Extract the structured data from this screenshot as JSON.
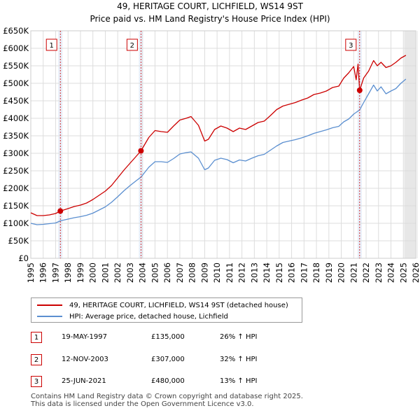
{
  "chart_data": {
    "type": "line",
    "title": "49, HERITAGE COURT, LICHFIELD, WS14 9ST",
    "subtitle": "Price paid vs. HM Land Registry's House Price Index (HPI)",
    "xlabel": "",
    "ylabel": "",
    "xlim": [
      1995,
      2026
    ],
    "ylim": [
      0,
      650000
    ],
    "y_ticks": [
      0,
      50000,
      100000,
      150000,
      200000,
      250000,
      300000,
      350000,
      400000,
      450000,
      500000,
      550000,
      600000,
      650000
    ],
    "y_tick_labels": [
      "£0",
      "£50K",
      "£100K",
      "£150K",
      "£200K",
      "£250K",
      "£300K",
      "£350K",
      "£400K",
      "£450K",
      "£500K",
      "£550K",
      "£600K",
      "£650K"
    ],
    "x_ticks": [
      "1995",
      "1996",
      "1997",
      "1998",
      "1999",
      "2000",
      "2001",
      "2002",
      "2003",
      "2004",
      "2005",
      "2006",
      "2007",
      "2008",
      "2009",
      "2010",
      "2011",
      "2012",
      "2013",
      "2014",
      "2015",
      "2016",
      "2017",
      "2018",
      "2019",
      "2020",
      "2021",
      "2022",
      "2023",
      "2024",
      "2025",
      "2026"
    ],
    "grid": true,
    "forecast_start": 2025.1,
    "series": [
      {
        "name": "49, HERITAGE COURT, LICHFIELD, WS14 9ST (detached house)",
        "color": "#cc0000",
        "x": [
          1995.0,
          1995.5,
          1996.0,
          1996.5,
          1997.0,
          1997.38,
          1998.0,
          1998.5,
          1999.0,
          1999.5,
          2000.0,
          2000.5,
          2001.0,
          2001.5,
          2002.0,
          2002.5,
          2003.0,
          2003.5,
          2003.87,
          2004.5,
          2005.0,
          2005.5,
          2006.0,
          2006.5,
          2007.0,
          2007.5,
          2007.9,
          2008.5,
          2009.0,
          2009.3,
          2009.8,
          2010.3,
          2010.8,
          2011.3,
          2011.8,
          2012.3,
          2012.8,
          2013.3,
          2013.8,
          2014.3,
          2014.8,
          2015.3,
          2015.8,
          2016.3,
          2016.8,
          2017.3,
          2017.8,
          2018.3,
          2018.8,
          2019.3,
          2019.8,
          2020.2,
          2020.6,
          2021.0,
          2021.2,
          2021.35,
          2021.48,
          2021.8,
          2022.2,
          2022.6,
          2022.9,
          2023.2,
          2023.6,
          2024.0,
          2024.4,
          2024.8,
          2025.2
        ],
        "values": [
          130000,
          122000,
          122000,
          124000,
          128000,
          135000,
          142000,
          148000,
          152000,
          158000,
          168000,
          180000,
          192000,
          208000,
          230000,
          252000,
          272000,
          292000,
          307000,
          345000,
          365000,
          362000,
          360000,
          378000,
          395000,
          400000,
          405000,
          380000,
          335000,
          340000,
          368000,
          378000,
          372000,
          362000,
          372000,
          368000,
          378000,
          388000,
          392000,
          408000,
          425000,
          435000,
          440000,
          445000,
          452000,
          458000,
          468000,
          472000,
          478000,
          488000,
          492000,
          515000,
          530000,
          548000,
          510000,
          555000,
          480000,
          515000,
          535000,
          565000,
          550000,
          560000,
          545000,
          550000,
          560000,
          572000,
          580000
        ]
      },
      {
        "name": "HPI: Average price, detached house, Lichfield",
        "color": "#5b8fd0",
        "x": [
          1995.0,
          1995.5,
          1996.0,
          1996.5,
          1997.0,
          1997.38,
          1998.0,
          1998.5,
          1999.0,
          1999.5,
          2000.0,
          2000.5,
          2001.0,
          2001.5,
          2002.0,
          2002.5,
          2003.0,
          2003.5,
          2003.87,
          2004.5,
          2005.0,
          2005.5,
          2006.0,
          2006.5,
          2007.0,
          2007.5,
          2007.9,
          2008.5,
          2009.0,
          2009.3,
          2009.8,
          2010.3,
          2010.8,
          2011.3,
          2011.8,
          2012.3,
          2012.8,
          2013.3,
          2013.8,
          2014.3,
          2014.8,
          2015.3,
          2015.8,
          2016.3,
          2016.8,
          2017.3,
          2017.8,
          2018.3,
          2018.8,
          2019.3,
          2019.8,
          2020.2,
          2020.6,
          2021.0,
          2021.48,
          2021.8,
          2022.2,
          2022.6,
          2022.9,
          2023.2,
          2023.6,
          2024.0,
          2024.4,
          2024.8,
          2025.2
        ],
        "values": [
          100000,
          96000,
          97000,
          99000,
          101000,
          107000,
          112000,
          116000,
          119000,
          123000,
          129000,
          138000,
          147000,
          160000,
          176000,
          193000,
          208000,
          222000,
          232000,
          260000,
          276000,
          276000,
          274000,
          285000,
          298000,
          302000,
          304000,
          286000,
          253000,
          258000,
          280000,
          286000,
          282000,
          273000,
          281000,
          278000,
          286000,
          293000,
          297000,
          309000,
          321000,
          331000,
          335000,
          339000,
          344000,
          350000,
          357000,
          362000,
          367000,
          373000,
          377000,
          390000,
          398000,
          412000,
          424000,
          445000,
          470000,
          495000,
          478000,
          490000,
          470000,
          478000,
          485000,
          500000,
          512000
        ]
      }
    ],
    "sales": [
      {
        "marker": "1",
        "year": 1997.38,
        "value": 135000
      },
      {
        "marker": "2",
        "year": 2003.87,
        "value": 307000
      },
      {
        "marker": "3",
        "year": 2021.48,
        "value": 480000
      }
    ]
  },
  "legend": {
    "property_label": "49, HERITAGE COURT, LICHFIELD, WS14 9ST (detached house)",
    "hpi_label": "HPI: Average price, detached house, Lichfield"
  },
  "sales_table": [
    {
      "marker": "1",
      "date": "19-MAY-1997",
      "price": "£135,000",
      "hpi": "26% ↑ HPI"
    },
    {
      "marker": "2",
      "date": "12-NOV-2003",
      "price": "£307,000",
      "hpi": "32% ↑ HPI"
    },
    {
      "marker": "3",
      "date": "25-JUN-2021",
      "price": "£480,000",
      "hpi": "13% ↑ HPI"
    }
  ],
  "footer": {
    "line1": "Contains HM Land Registry data © Crown copyright and database right 2025.",
    "line2": "This data is licensed under the Open Government Licence v3.0."
  },
  "colors": {
    "property": "#cc0000",
    "hpi": "#5b8fd0",
    "grid": "#dddddd",
    "band": "#e8eef8"
  }
}
